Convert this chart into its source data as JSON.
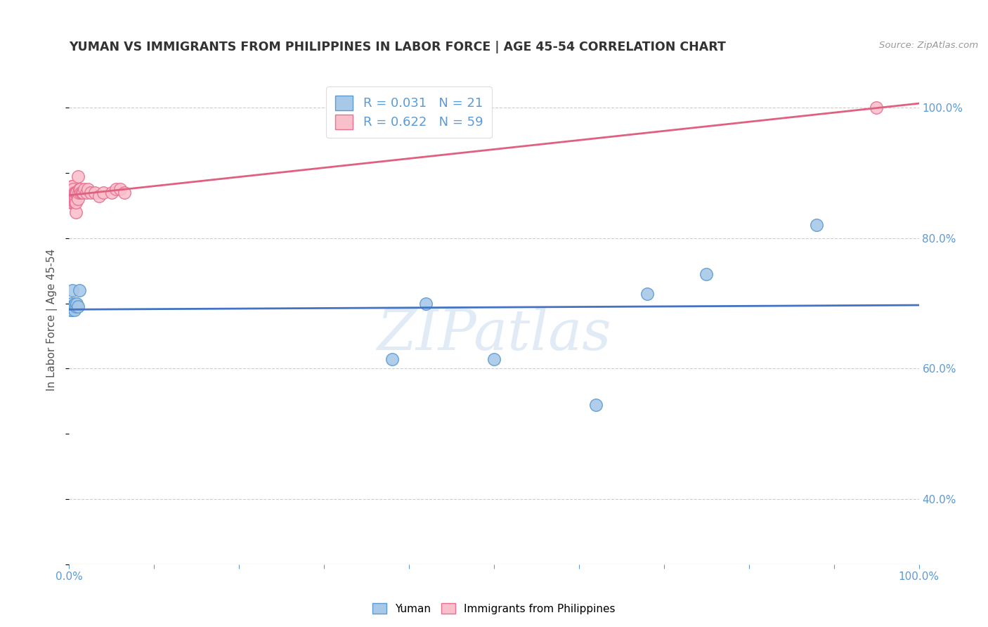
{
  "title": "YUMAN VS IMMIGRANTS FROM PHILIPPINES IN LABOR FORCE | AGE 45-54 CORRELATION CHART",
  "source": "Source: ZipAtlas.com",
  "ylabel": "In Labor Force | Age 45-54",
  "xlabel_blue": "Yuman",
  "xlabel_pink": "Immigrants from Philippines",
  "r_blue": 0.031,
  "n_blue": 21,
  "r_pink": 0.622,
  "n_pink": 59,
  "watermark": "ZIPatlas",
  "blue_scatter_x": [
    0.001,
    0.002,
    0.002,
    0.003,
    0.003,
    0.004,
    0.004,
    0.005,
    0.006,
    0.007,
    0.008,
    0.009,
    0.01,
    0.012,
    0.38,
    0.42,
    0.5,
    0.62,
    0.68,
    0.75,
    0.88
  ],
  "blue_scatter_y": [
    0.69,
    0.695,
    0.7,
    0.695,
    0.69,
    0.72,
    0.695,
    0.695,
    0.69,
    0.7,
    0.695,
    0.7,
    0.695,
    0.72,
    0.615,
    0.7,
    0.615,
    0.545,
    0.715,
    0.745,
    0.82
  ],
  "pink_scatter_x": [
    0.001,
    0.001,
    0.001,
    0.001,
    0.002,
    0.002,
    0.002,
    0.002,
    0.002,
    0.002,
    0.002,
    0.003,
    0.003,
    0.003,
    0.003,
    0.003,
    0.003,
    0.003,
    0.004,
    0.004,
    0.004,
    0.004,
    0.004,
    0.004,
    0.005,
    0.005,
    0.005,
    0.005,
    0.006,
    0.006,
    0.006,
    0.007,
    0.007,
    0.007,
    0.007,
    0.008,
    0.008,
    0.008,
    0.009,
    0.01,
    0.01,
    0.011,
    0.012,
    0.013,
    0.014,
    0.015,
    0.016,
    0.018,
    0.02,
    0.022,
    0.025,
    0.03,
    0.035,
    0.04,
    0.05,
    0.055,
    0.06,
    0.065,
    0.95
  ],
  "pink_scatter_y": [
    0.86,
    0.865,
    0.87,
    0.875,
    0.855,
    0.86,
    0.865,
    0.87,
    0.87,
    0.875,
    0.875,
    0.855,
    0.86,
    0.86,
    0.865,
    0.87,
    0.875,
    0.88,
    0.855,
    0.86,
    0.865,
    0.87,
    0.875,
    0.88,
    0.86,
    0.865,
    0.87,
    0.875,
    0.855,
    0.86,
    0.87,
    0.855,
    0.86,
    0.865,
    0.87,
    0.84,
    0.855,
    0.87,
    0.87,
    0.86,
    0.895,
    0.87,
    0.875,
    0.875,
    0.87,
    0.87,
    0.87,
    0.875,
    0.87,
    0.875,
    0.87,
    0.87,
    0.865,
    0.87,
    0.87,
    0.875,
    0.875,
    0.87,
    1.0
  ],
  "blue_color": "#A8C8E8",
  "pink_color": "#F9C0CC",
  "blue_edge_color": "#5B9BD5",
  "pink_edge_color": "#E87090",
  "blue_line_color": "#4472C4",
  "pink_line_color": "#E06080",
  "background_color": "#FFFFFF",
  "grid_color": "#CCCCCC",
  "title_color": "#333333",
  "source_color": "#999999",
  "tick_color": "#5B9BD5",
  "ylabel_color": "#555555"
}
